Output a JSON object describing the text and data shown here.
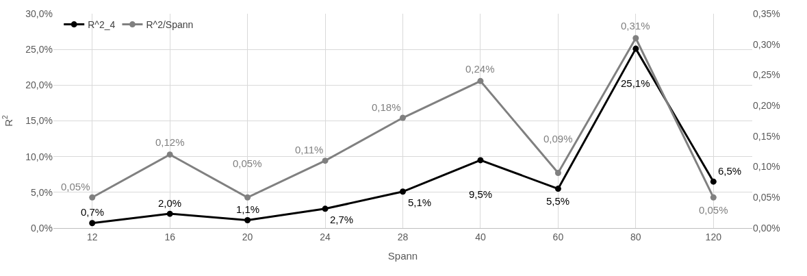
{
  "chart_data": {
    "type": "line",
    "xlabel": "Spann",
    "ylabel": "R$^{2}$",
    "categories": [
      "12",
      "16",
      "20",
      "24",
      "28",
      "40",
      "60",
      "80",
      "120"
    ],
    "series": [
      {
        "name": "R^2_4",
        "color": "#000000",
        "values": [
          0.7,
          2.0,
          1.1,
          2.7,
          5.1,
          9.5,
          5.5,
          25.1,
          6.5
        ],
        "value_labels": [
          "0,7%",
          "2,0%",
          "1,1%",
          "2,7%",
          "5,1%",
          "9,5%",
          "5,5%",
          "25,1%",
          "6,5%"
        ]
      },
      {
        "name": "R^2/Spann",
        "color": "#808080",
        "axis": "y2",
        "values": [
          0.05,
          0.12,
          0.05,
          0.11,
          0.18,
          0.24,
          0.09,
          0.31,
          0.05
        ],
        "value_labels": [
          "0,05%",
          "0,12%",
          "0,05%",
          "0,11%",
          "0,18%",
          "0,24%",
          "0,09%",
          "0,31%",
          "0,05%"
        ]
      }
    ],
    "ylim": [
      0,
      30
    ],
    "yticks": [
      {
        "value": 0,
        "label": "0,0%"
      },
      {
        "value": 5,
        "label": "5,0%"
      },
      {
        "value": 10,
        "label": "10,0%"
      },
      {
        "value": 15,
        "label": "15,0%"
      },
      {
        "value": 20,
        "label": "20,0%"
      },
      {
        "value": 25,
        "label": "25,0%"
      },
      {
        "value": 30,
        "label": "30,0%"
      }
    ],
    "y2lim": [
      0,
      0.35
    ],
    "y2ticks": [
      {
        "value": 0,
        "label": "0,00%"
      },
      {
        "value": 0.05,
        "label": "0,05%"
      },
      {
        "value": 0.1,
        "label": "0,10%"
      },
      {
        "value": 0.15,
        "label": "0,15%"
      },
      {
        "value": 0.2,
        "label": "0,20%"
      },
      {
        "value": 0.25,
        "label": "0,25%"
      },
      {
        "value": 0.3,
        "label": "0,30%"
      },
      {
        "value": 0.35,
        "label": "0,35%"
      }
    ],
    "grid": true,
    "legend": "top left",
    "marker": "circle",
    "line_style": "solid"
  }
}
